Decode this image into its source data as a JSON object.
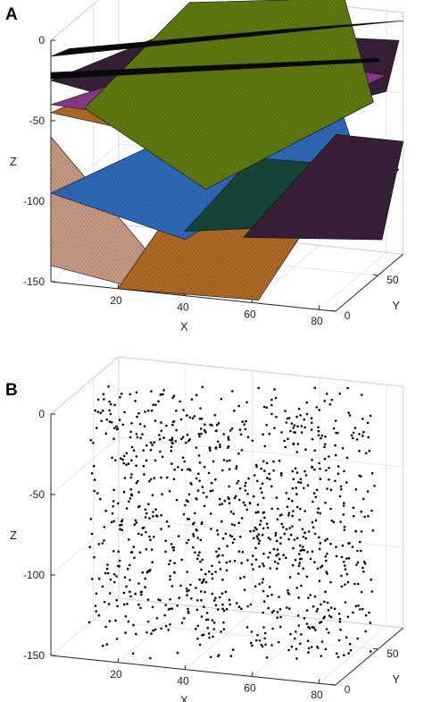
{
  "panels": [
    {
      "letter": "A"
    },
    {
      "letter": "B"
    }
  ],
  "chart_data": [
    {
      "panel": "A",
      "type": "surface3d",
      "xlabel": "X",
      "ylabel": "Y",
      "zlabel": "Z",
      "xlim": [
        0,
        85
      ],
      "ylim": [
        0,
        80
      ],
      "zlim": [
        -150,
        0
      ],
      "xticks": [
        20,
        40,
        60,
        80
      ],
      "yticks": [
        0,
        50
      ],
      "zticks": [
        0,
        -50,
        -100,
        -150
      ],
      "grid": true,
      "colors": {
        "olive": "#5f7a10",
        "black": "#0a0a0a",
        "magenta": "#8a3a8a",
        "plum": "#3a1f3a",
        "orange": "#b06a25",
        "blue": "#2e6ab8",
        "teal": "#18453a",
        "pink": "#c89a84"
      },
      "surfaces": [
        {
          "color": "#c89a84",
          "pts": [
            [
              0,
              0,
              -60
            ],
            [
              0,
              0,
              -140
            ],
            [
              30,
              0,
              -150
            ],
            [
              40,
              0,
              -150
            ]
          ]
        },
        {
          "color": "#b06a25",
          "pts": [
            [
              20,
              0,
              -150
            ],
            [
              62,
              0,
              -148
            ],
            [
              72,
              40,
              -100
            ],
            [
              60,
              45,
              -75
            ],
            [
              35,
              20,
              -95
            ]
          ]
        },
        {
          "color": "#2e6ab8",
          "pts": [
            [
              0,
              0,
              -95
            ],
            [
              40,
              0,
              -115
            ],
            [
              80,
              40,
              -65
            ],
            [
              70,
              60,
              -45
            ],
            [
              30,
              30,
              -65
            ]
          ]
        },
        {
          "color": "#18453a",
          "pts": [
            [
              40,
              0,
              -110
            ],
            [
              82,
              30,
              -110
            ],
            [
              85,
              75,
              -95
            ],
            [
              50,
              40,
              -80
            ]
          ]
        },
        {
          "color": "#3a1f3a",
          "pts": [
            [
              55,
              10,
              -115
            ],
            [
              85,
              55,
              -130
            ],
            [
              85,
              80,
              -80
            ],
            [
              70,
              60,
              -70
            ]
          ]
        },
        {
          "color": "#b06a25",
          "pts": [
            [
              0,
              0,
              -45
            ],
            [
              40,
              10,
              -60
            ],
            [
              80,
              55,
              -45
            ],
            [
              80,
              75,
              -30
            ],
            [
              30,
              40,
              -20
            ]
          ]
        },
        {
          "color": "#3a1f3a",
          "pts": [
            [
              0,
              0,
              -25
            ],
            [
              50,
              20,
              -55
            ],
            [
              85,
              60,
              -40
            ],
            [
              85,
              75,
              -15
            ],
            [
              30,
              30,
              0
            ]
          ]
        },
        {
          "color": "#8a3a8a",
          "pts": [
            [
              0,
              0,
              -40
            ],
            [
              60,
              20,
              -55
            ],
            [
              85,
              60,
              -30
            ],
            [
              40,
              40,
              -15
            ]
          ]
        },
        {
          "color": "#5f7a10",
          "pts": [
            [
              10,
              0,
              -40
            ],
            [
              45,
              5,
              -85
            ],
            [
              85,
              45,
              -40
            ],
            [
              70,
              70,
              10
            ],
            [
              30,
              45,
              10
            ]
          ]
        },
        {
          "color": "#0a0a0a",
          "pts": [
            [
              0,
              0,
              -10
            ],
            [
              85,
              80,
              -5
            ],
            [
              60,
              40,
              2
            ],
            [
              5,
              2,
              -5
            ]
          ]
        },
        {
          "color": "#0a0a0a",
          "pts": [
            [
              0,
              0,
              -20
            ],
            [
              80,
              70,
              -25
            ],
            [
              80,
              72,
              -28
            ],
            [
              0,
              0,
              -24
            ]
          ]
        }
      ]
    },
    {
      "panel": "B",
      "type": "scatter3d",
      "xlabel": "X",
      "ylabel": "Y",
      "zlabel": "Z",
      "xlim": [
        0,
        85
      ],
      "ylim": [
        0,
        80
      ],
      "zlim": [
        -150,
        0
      ],
      "xticks": [
        20,
        40,
        60,
        80
      ],
      "yticks": [
        0,
        50
      ],
      "zticks": [
        0,
        -50,
        -100,
        -150
      ],
      "grid": true,
      "point_count": 1100,
      "point_color": "#000000",
      "note_distribution": "points uniformly distributed within the box, sparser near top"
    }
  ]
}
